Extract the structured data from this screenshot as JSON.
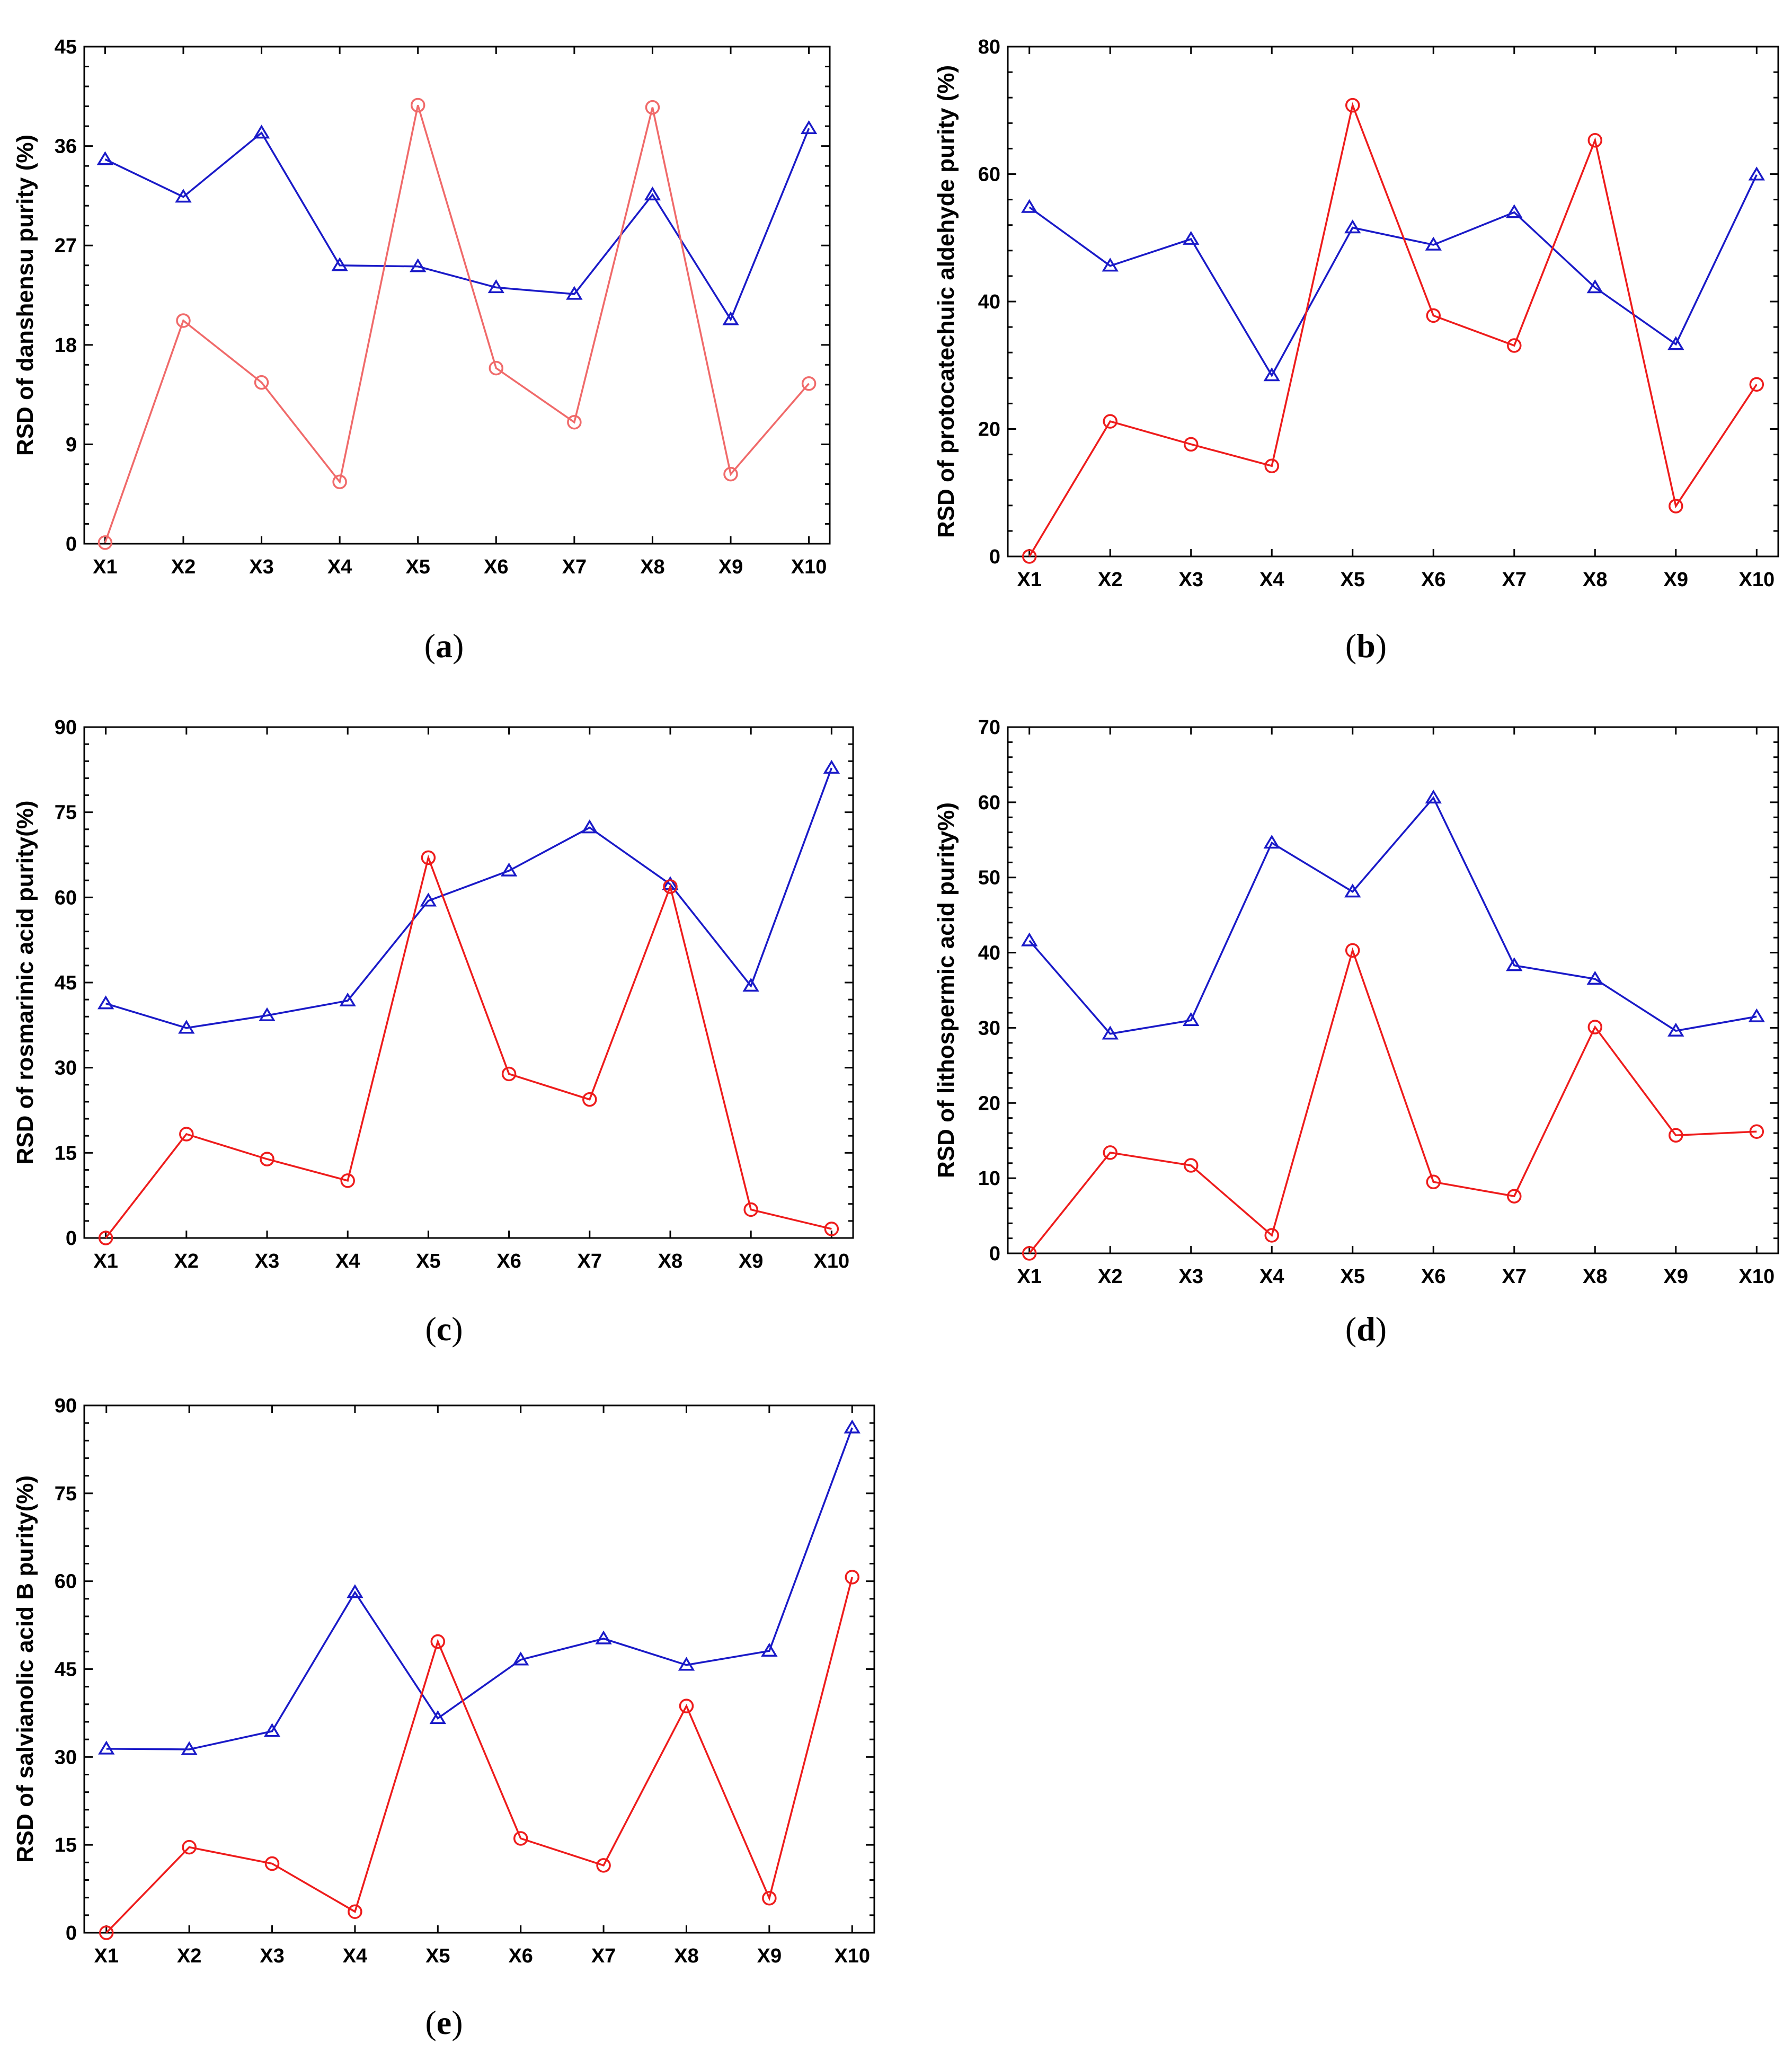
{
  "colors": {
    "series_blue": "#1a1ac8",
    "series_red": "#ee1c1c",
    "series_red_light": "#f06a6a"
  },
  "chart_data": [
    {
      "type": "line",
      "panel": "a",
      "ylabel": "RSD of danshensu purity (%)",
      "ylim": [
        0,
        45
      ],
      "yticks": [
        0,
        9,
        18,
        27,
        36,
        45
      ],
      "categories": [
        "X1",
        "X2",
        "X3",
        "X4",
        "X5",
        "X6",
        "X7",
        "X8",
        "X9",
        "X10"
      ],
      "series": [
        {
          "name": "triangle",
          "color": "#1a1ac8",
          "marker": "triangle",
          "values": [
            34.8,
            31.4,
            37.2,
            25.2,
            25.1,
            23.2,
            22.6,
            31.6,
            20.3,
            37.6
          ]
        },
        {
          "name": "circle",
          "color": "#f06a6a",
          "marker": "circle",
          "values": [
            0.1,
            20.2,
            14.6,
            5.6,
            39.7,
            15.9,
            11.0,
            39.5,
            6.3,
            14.5
          ]
        }
      ]
    },
    {
      "type": "line",
      "panel": "b",
      "ylabel": "RSD of protocatechuic aldehyde purity (%)",
      "ylim": [
        0,
        80
      ],
      "yticks": [
        0,
        20,
        40,
        60,
        80
      ],
      "categories": [
        "X1",
        "X2",
        "X3",
        "X4",
        "X5",
        "X6",
        "X7",
        "X8",
        "X9",
        "X10"
      ],
      "series": [
        {
          "name": "triangle",
          "color": "#1a1ac8",
          "marker": "triangle",
          "values": [
            54.8,
            45.6,
            49.8,
            28.4,
            51.6,
            48.9,
            54.0,
            42.2,
            33.3,
            59.9
          ]
        },
        {
          "name": "circle",
          "color": "#ee1c1c",
          "marker": "circle",
          "values": [
            0.0,
            21.2,
            17.6,
            14.2,
            70.8,
            37.8,
            33.1,
            65.3,
            7.9,
            27.0
          ]
        }
      ]
    },
    {
      "type": "line",
      "panel": "c",
      "ylabel": "RSD of rosmarinic acid purity(%)",
      "ylim": [
        0,
        90
      ],
      "yticks": [
        0,
        15,
        30,
        45,
        60,
        75,
        90
      ],
      "categories": [
        "X1",
        "X2",
        "X3",
        "X4",
        "X5",
        "X6",
        "X7",
        "X8",
        "X9",
        "X10"
      ],
      "series": [
        {
          "name": "triangle",
          "color": "#1a1ac8",
          "marker": "triangle",
          "values": [
            41.3,
            37.0,
            39.2,
            41.8,
            59.4,
            64.7,
            72.3,
            62.3,
            44.4,
            82.8
          ]
        },
        {
          "name": "circle",
          "color": "#ee1c1c",
          "marker": "circle",
          "values": [
            0.0,
            18.3,
            13.9,
            10.1,
            67.0,
            28.9,
            24.4,
            61.9,
            5.0,
            1.6
          ]
        }
      ]
    },
    {
      "type": "line",
      "panel": "d",
      "ylabel": "RSD of lithospermic acid purity%)",
      "ylim": [
        0,
        70
      ],
      "yticks": [
        0,
        10,
        20,
        30,
        40,
        50,
        60,
        70
      ],
      "categories": [
        "X1",
        "X2",
        "X3",
        "X4",
        "X5",
        "X6",
        "X7",
        "X8",
        "X9",
        "X10"
      ],
      "series": [
        {
          "name": "triangle",
          "color": "#1a1ac8",
          "marker": "triangle",
          "values": [
            41.6,
            29.2,
            31.0,
            54.6,
            48.1,
            60.6,
            38.3,
            36.5,
            29.6,
            31.5
          ]
        },
        {
          "name": "circle",
          "color": "#ee1c1c",
          "marker": "circle",
          "values": [
            0.0,
            13.4,
            11.7,
            2.4,
            40.3,
            9.5,
            7.6,
            30.1,
            15.7,
            16.2
          ]
        }
      ]
    },
    {
      "type": "line",
      "panel": "e",
      "ylabel": "RSD of salvianolic acid B purity(%)",
      "ylim": [
        0,
        90
      ],
      "yticks": [
        0,
        15,
        30,
        45,
        60,
        75,
        90
      ],
      "categories": [
        "X1",
        "X2",
        "X3",
        "X4",
        "X5",
        "X6",
        "X7",
        "X8",
        "X9",
        "X10"
      ],
      "series": [
        {
          "name": "triangle",
          "color": "#1a1ac8",
          "marker": "triangle",
          "values": [
            31.4,
            31.3,
            34.4,
            58.1,
            36.6,
            46.6,
            50.2,
            45.7,
            48.1,
            86.2
          ]
        },
        {
          "name": "circle",
          "color": "#ee1c1c",
          "marker": "circle",
          "values": [
            0.0,
            14.6,
            11.8,
            3.6,
            49.7,
            16.1,
            11.5,
            38.7,
            5.9,
            60.7
          ]
        }
      ]
    }
  ]
}
